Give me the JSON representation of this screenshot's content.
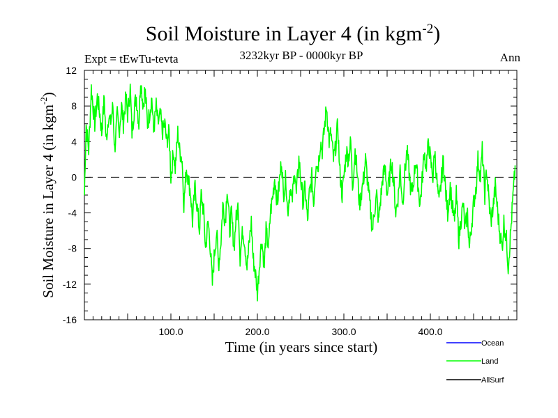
{
  "chart_data": {
    "type": "line",
    "title": "Soil Moisture in Layer 4 (in kgm",
    "title_sup": "-2",
    "title_end": ")",
    "subtitle": "3232kyr BP - 0000kyr BP",
    "left_label": "Expt = tEwTu-tevta",
    "right_label": "Ann",
    "xlabel": "Time (in years since start)",
    "ylabel": "Soil Moisture in Layer 4 (in kgm",
    "ylabel_sup": "-2",
    "ylabel_end": ")",
    "xlim": [
      0,
      500
    ],
    "ylim": [
      -16,
      12
    ],
    "x_ticks": [
      100,
      200,
      300,
      400
    ],
    "x_tick_labels": [
      "100.0",
      "200.0",
      "300.0",
      "400.0"
    ],
    "y_ticks": [
      -16,
      -12,
      -8,
      -4,
      0,
      4,
      8,
      12
    ],
    "y_tick_labels": [
      "-16",
      "-12",
      "-8",
      "-4",
      "0",
      "4",
      "8",
      "12"
    ],
    "reference_line": 0,
    "legend": [
      {
        "name": "Ocean",
        "color": "#0000ff"
      },
      {
        "name": "Land",
        "color": "#00ff00"
      },
      {
        "name": "AllSurf",
        "color": "#000000"
      }
    ],
    "series": [
      {
        "name": "Land",
        "color": "#00ff00",
        "anchors_x": [
          0,
          2,
          5,
          8,
          10,
          12,
          15,
          18,
          20,
          23,
          25,
          28,
          30,
          33,
          35,
          38,
          40,
          43,
          45,
          48,
          50,
          53,
          55,
          58,
          60,
          63,
          65,
          68,
          70,
          73,
          75,
          78,
          80,
          83,
          85,
          88,
          90,
          93,
          95,
          98,
          100,
          103,
          105,
          108,
          110,
          113,
          115,
          118,
          120,
          123,
          125,
          128,
          130,
          133,
          135,
          138,
          140,
          143,
          145,
          148,
          150,
          153,
          155,
          158,
          160,
          163,
          165,
          168,
          170,
          173,
          175,
          178,
          180,
          183,
          185,
          188,
          190,
          193,
          195,
          198,
          200,
          203,
          205,
          208,
          210,
          213,
          215,
          218,
          220,
          223,
          225,
          228,
          230,
          233,
          235,
          238,
          240,
          243,
          245,
          248,
          250,
          253,
          255,
          258,
          260,
          263,
          265,
          268,
          270,
          273,
          275,
          278,
          280,
          283,
          285,
          288,
          290,
          293,
          295,
          298,
          300,
          303,
          305,
          308,
          310,
          313,
          315,
          318,
          320,
          323,
          325,
          328,
          330,
          333,
          335,
          338,
          340,
          343,
          345,
          348,
          350,
          353,
          355,
          358,
          360,
          363,
          365,
          368,
          370,
          373,
          375,
          378,
          380,
          383,
          385,
          388,
          390,
          393,
          395,
          398,
          400,
          403,
          405,
          408,
          410,
          413,
          415,
          418,
          420,
          423,
          425,
          428,
          430,
          433,
          435,
          438,
          440,
          443,
          445,
          448,
          450,
          453,
          455,
          458,
          460,
          463,
          465,
          468,
          470,
          473,
          475,
          478,
          480,
          483,
          485,
          488,
          490,
          493,
          495,
          498
        ],
        "anchors_y": [
          -2,
          6,
          3,
          10,
          8,
          6,
          9,
          7,
          5,
          9,
          4,
          7,
          6,
          8,
          3,
          7,
          5,
          8,
          6,
          9,
          7,
          10,
          5,
          8,
          9,
          6,
          11,
          8,
          10,
          6,
          7,
          9,
          5,
          8,
          6,
          7,
          5,
          6,
          4,
          5,
          0,
          3,
          1,
          5,
          3,
          2,
          -3,
          1,
          0,
          -2,
          -5,
          -1,
          -3,
          -6,
          -2,
          -4,
          -8,
          -5,
          -7,
          -12,
          -9,
          -6,
          -10,
          -7,
          -3,
          -5,
          -1,
          -6,
          -4,
          -8,
          -5,
          -3,
          -9,
          -6,
          -7,
          -10,
          -8,
          -5,
          -9,
          -11,
          -13,
          -9,
          -7,
          -10,
          -6,
          -8,
          -4,
          -2,
          0,
          -3,
          -1,
          2,
          -2,
          0,
          -4,
          -1,
          -3,
          1,
          -2,
          2,
          0,
          -3,
          -1,
          -5,
          -2,
          0,
          -3,
          2,
          1,
          4,
          3,
          6,
          8,
          4,
          5,
          2,
          3,
          6,
          1,
          -2,
          0,
          3,
          2,
          4,
          -1,
          3,
          1,
          -3,
          -2,
          0,
          2,
          -1,
          -3,
          -6,
          -4,
          -2,
          -5,
          -2,
          0,
          1,
          -2,
          0,
          2,
          -1,
          -4,
          -2,
          1,
          -3,
          0,
          3,
          1,
          -2,
          -1,
          2,
          0,
          -3,
          -1,
          3,
          1,
          4,
          2,
          0,
          3,
          -1,
          -3,
          0,
          2,
          -2,
          -4,
          -1,
          -3,
          -5,
          -2,
          -7,
          -5,
          -3,
          -6,
          -4,
          -8,
          -5,
          -3,
          -1,
          2,
          0,
          3,
          -2,
          1,
          -3,
          -5,
          -3,
          -1,
          -4,
          -6,
          -8,
          -5,
          -7,
          -10,
          -6,
          -3,
          1
        ]
      },
      {
        "name": "Ocean",
        "color": "#0000ff",
        "values": []
      },
      {
        "name": "AllSurf",
        "color": "#000000",
        "values": []
      }
    ]
  }
}
